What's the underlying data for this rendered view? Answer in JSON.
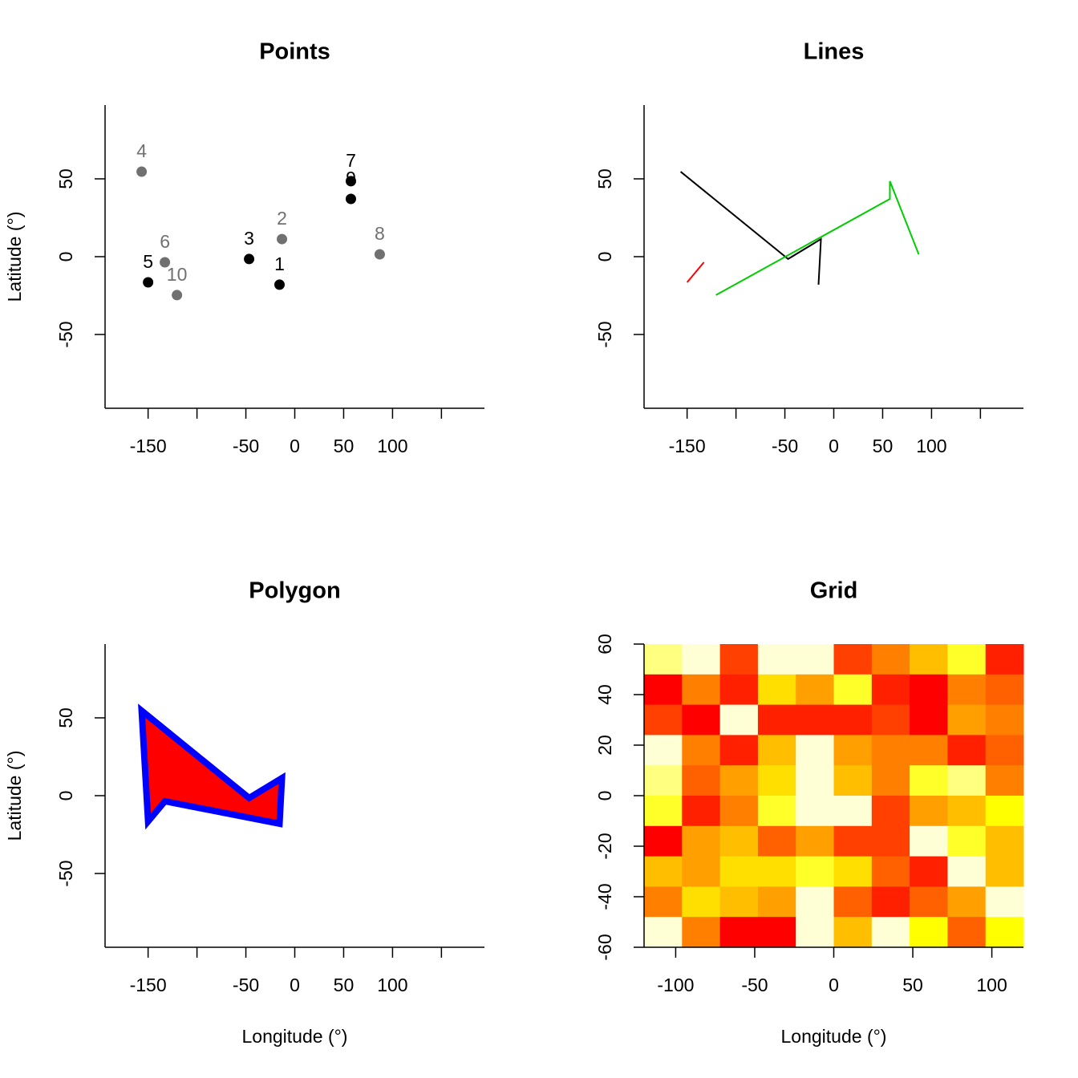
{
  "chart_data": [
    {
      "type": "scatter",
      "title": "Points",
      "ylabel": "Latitude (°)",
      "x": [
        -15.6,
        -13.1,
        -46.7,
        -156.6,
        -150,
        -132.8,
        57.4,
        86.9,
        57.4,
        -120.5
      ],
      "y": [
        -18.0,
        11.3,
        -1.5,
        54.6,
        -16.5,
        -3.6,
        48.5,
        1.5,
        37.1,
        -24.7
      ],
      "labels": [
        "1",
        "2",
        "3",
        "4",
        "5",
        "6",
        "7",
        "8",
        "9",
        "10"
      ],
      "colors": [
        "#000000",
        "#707070",
        "#000000",
        "#707070",
        "#000000",
        "#707070",
        "#000000",
        "#707070",
        "#000000",
        "#707070"
      ],
      "xlim": [
        -194,
        194
      ],
      "ylim": [
        -97.4,
        97.4
      ],
      "xticks": [
        -150,
        {
          "value": -100,
          "label": null
        },
        -50,
        0,
        50,
        100,
        {
          "value": 150,
          "label": null
        }
      ],
      "yticks": [
        -50,
        0,
        50
      ]
    },
    {
      "type": "line",
      "title": "Lines",
      "series": [
        {
          "color": "#000000",
          "x": [
            -156.6,
            -46.7,
            -13.1,
            -15.6
          ],
          "y": [
            54.6,
            -1.5,
            11.3,
            -18.0
          ]
        },
        {
          "color": "#FF0000",
          "x": [
            -150,
            -132.8
          ],
          "y": [
            -16.5,
            -3.6
          ]
        },
        {
          "color": "#00CD00",
          "x": [
            -120.5,
            57.4,
            57.4,
            86.9
          ],
          "y": [
            -24.7,
            37.1,
            48.5,
            1.5
          ]
        }
      ],
      "xlim": [
        -194,
        194
      ],
      "ylim": [
        -97.4,
        97.4
      ],
      "xticks": [
        -150,
        {
          "value": -100,
          "label": null
        },
        -50,
        0,
        50,
        100,
        {
          "value": 150,
          "label": null
        }
      ],
      "yticks": [
        -50,
        0,
        50
      ]
    },
    {
      "type": "polygon",
      "title": "Polygon",
      "xlabel": "Longitude (°)",
      "ylabel": "Latitude (°)",
      "x": [
        -156.6,
        -46.7,
        -13.1,
        -15.6,
        -132.8,
        -150
      ],
      "y": [
        54.6,
        -1.5,
        11.3,
        -18.0,
        -3.6,
        -16.5
      ],
      "fill": "#FF0000",
      "border": "#0000FF",
      "xlim": [
        -194,
        194
      ],
      "ylim": [
        -97.4,
        97.4
      ],
      "xticks": [
        -150,
        {
          "value": -100,
          "label": null
        },
        -50,
        0,
        50,
        100,
        {
          "value": 150,
          "label": null
        }
      ],
      "yticks": [
        -50,
        0,
        50
      ]
    },
    {
      "type": "heatmap",
      "title": "Grid",
      "xlabel": "Longitude (°)",
      "x": [
        -108,
        -84,
        -60,
        -36,
        -12,
        12,
        36,
        60,
        84,
        108
      ],
      "y": [
        54,
        42,
        30,
        18,
        6,
        -6,
        -18,
        -30,
        -42,
        -54
      ],
      "colors": [
        "#FF0000",
        "#FF2000",
        "#FF4000",
        "#FF6000",
        "#FF8000",
        "#FF9F00",
        "#FFBF00",
        "#FFDF00",
        "#FFFF00",
        "#FFFF2A",
        "#FFFF80",
        "#FFFFD5"
      ],
      "z": [
        [
          10,
          11,
          2,
          11,
          11,
          2,
          4,
          6,
          9,
          1
        ],
        [
          0,
          4,
          1,
          7,
          5,
          9,
          1,
          0,
          4,
          3
        ],
        [
          2,
          0,
          11,
          1,
          1,
          1,
          2,
          0,
          5,
          4
        ],
        [
          11,
          4,
          1,
          6,
          11,
          5,
          4,
          4,
          1,
          3
        ],
        [
          10,
          3,
          5,
          7,
          11,
          6,
          4,
          9,
          10,
          4
        ],
        [
          9,
          1,
          4,
          9,
          11,
          11,
          2,
          5,
          6,
          8
        ],
        [
          0,
          5,
          6,
          3,
          5,
          2,
          2,
          11,
          9,
          6
        ],
        [
          6,
          5,
          7,
          7,
          9,
          7,
          3,
          1,
          11,
          6
        ],
        [
          4,
          7,
          6,
          5,
          11,
          3,
          1,
          3,
          5,
          11
        ],
        [
          11,
          4,
          0,
          0,
          11,
          6,
          11,
          8,
          3,
          8
        ]
      ],
      "xlim": [
        -120,
        120
      ],
      "ylim": [
        -60,
        60
      ],
      "xticks": [
        -100,
        -50,
        0,
        50,
        100
      ],
      "yticks": [
        -60,
        -40,
        -20,
        0,
        20,
        40,
        60
      ]
    }
  ]
}
